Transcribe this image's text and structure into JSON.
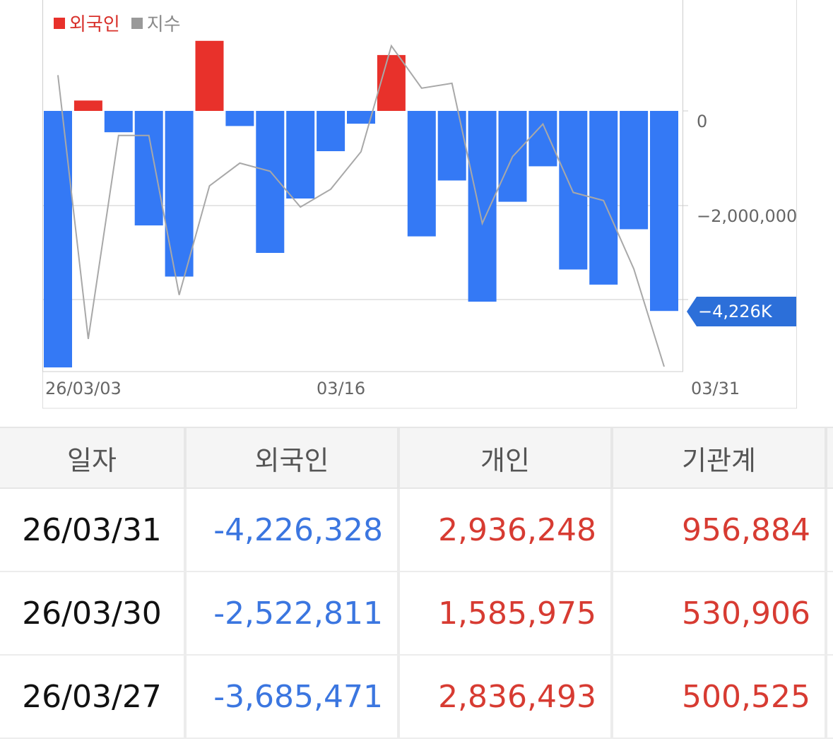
{
  "legend": {
    "foreign_label": "외국인",
    "index_label": "지수",
    "foreign_color": "#e8312b",
    "index_color": "#999999"
  },
  "chart_data": {
    "type": "bar",
    "series": [
      {
        "name": "외국인",
        "values": [
          -5420000,
          220000,
          -450000,
          -2420000,
          -3500000,
          1480000,
          -320000,
          -3000000,
          -1850000,
          -850000,
          -270000,
          1180000,
          -2650000,
          -1470000,
          -4030000,
          -1920000,
          -1170000,
          -3350000,
          -3670000,
          -2500000,
          -4226328
        ]
      },
      {
        "name": "지수",
        "values": [
          0.895,
          0.085,
          0.71,
          0.71,
          0.22,
          0.555,
          0.625,
          0.6,
          0.49,
          0.545,
          0.66,
          0.985,
          0.855,
          0.87,
          0.44,
          0.645,
          0.745,
          0.535,
          0.51,
          0.3,
          0.0
        ]
      }
    ],
    "y_ticks": [
      "0",
      "−2,000,000"
    ],
    "x_ticks": [
      "26/03/03",
      "03/16",
      "03/31"
    ],
    "last_value_tag": "−4,226K",
    "positive_color": "#e8312b",
    "negative_color": "#3479f5",
    "grid": true
  },
  "table": {
    "headers": [
      "일자",
      "외국인",
      "개인",
      "기관계"
    ],
    "rows": [
      {
        "date": "26/03/31",
        "foreign": "-4,226,328",
        "individual": "2,936,248",
        "institution": "956,884"
      },
      {
        "date": "26/03/30",
        "foreign": "-2,522,811",
        "individual": "1,585,975",
        "institution": "530,906"
      },
      {
        "date": "26/03/27",
        "foreign": "-3,685,471",
        "individual": "2,836,493",
        "institution": "500,525"
      }
    ]
  }
}
